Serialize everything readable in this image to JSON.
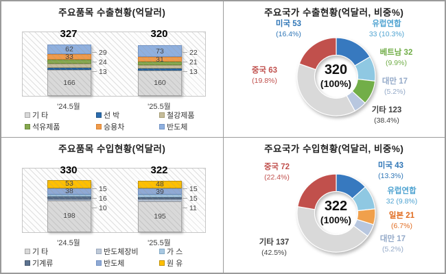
{
  "chart_data": [
    {
      "id": "export_items",
      "type": "bar",
      "stacked": true,
      "title": "주요품목 수출현황(억달러)",
      "categories": [
        "'24.5월",
        "'25.5월"
      ],
      "totals": [
        "327",
        "320"
      ],
      "series": [
        {
          "name": "기 타",
          "fill": "#D9D9D9",
          "border": "#A8A8A8",
          "values": [
            166,
            160
          ],
          "label": "inside"
        },
        {
          "name": "선 박",
          "fill": "#2B6CB0",
          "border": "#1F5384",
          "values": [
            13,
            13
          ],
          "label": "outside"
        },
        {
          "name": "철강제품",
          "fill": "#C6BD9B",
          "border": "#A49B72",
          "values": [
            24,
            21
          ],
          "label": "outside"
        },
        {
          "name": "석유제품",
          "fill": "#86A84E",
          "border": "#6B8A3A",
          "values": [
            29,
            22
          ],
          "label": "outside"
        },
        {
          "name": "승용차",
          "fill": "#F09B4C",
          "border": "#D9822E",
          "values": [
            33,
            31
          ],
          "label": "inside"
        },
        {
          "name": "반도체",
          "fill": "#8FB0DF",
          "border": "#7293C4",
          "values": [
            62,
            73
          ],
          "label": "inside"
        }
      ],
      "legend_order": [
        0,
        1,
        2,
        3,
        4,
        5
      ]
    },
    {
      "id": "export_countries",
      "type": "donut",
      "title": "주요국가 수출현황(억달러, 비중%)",
      "center_value": "320",
      "center_pct": "(100%)",
      "slices": [
        {
          "label": "미국",
          "value": 53,
          "pct": "(16.4%)",
          "wrap": false,
          "fill": "#3779BF",
          "label_color": "#2E75B6"
        },
        {
          "label": "유럽연합",
          "value": 33,
          "pct": "(10.3%)",
          "wrap": true,
          "fill": "#8FC8E2",
          "label_color": "#4FA3D1"
        },
        {
          "label": "베트남",
          "value": 32,
          "pct": "(9.9%)",
          "wrap": false,
          "fill": "#72AE48",
          "label_color": "#70AD47"
        },
        {
          "label": "대만",
          "value": 17,
          "pct": "(5.2%)",
          "wrap": false,
          "fill": "#B8C7DF",
          "label_color": "#93A9C8"
        },
        {
          "label": "기타",
          "value": 123,
          "pct": "(38.4%)",
          "wrap": false,
          "fill": "#D9D9D9",
          "label_color": "#404040"
        },
        {
          "label": "중국",
          "value": 63,
          "pct": "(19.8%)",
          "wrap": false,
          "fill": "#C1504C",
          "label_color": "#C0504D"
        }
      ]
    },
    {
      "id": "import_items",
      "type": "bar",
      "stacked": true,
      "title": "주요품목 수입현황(억달러)",
      "categories": [
        "'24.5월",
        "'25.5월"
      ],
      "totals": [
        "330",
        "322"
      ],
      "series": [
        {
          "name": "기 타",
          "fill": "#D9D9D9",
          "border": "#A8A8A8",
          "values": [
            198,
            195
          ],
          "label": "inside"
        },
        {
          "name": "반도체장비",
          "fill": "#BFCAD8",
          "border": "#9AA8BD",
          "values": [
            10,
            11
          ],
          "label": "outside"
        },
        {
          "name": "기계류",
          "fill": "#5D7390",
          "border": "#46586E",
          "values": [
            16,
            15
          ],
          "label": "outside"
        },
        {
          "name": "가 스",
          "fill": "#A9C8E1",
          "border": "#82A9C6",
          "values": [
            15,
            15
          ],
          "label": "outside"
        },
        {
          "name": "반도체",
          "fill": "#8FA9D4",
          "border": "#7191C3",
          "values": [
            38,
            39
          ],
          "label": "inside"
        },
        {
          "name": "원 유",
          "fill": "#FFC000",
          "border": "#BF9000",
          "values": [
            53,
            48
          ],
          "label": "inside"
        }
      ],
      "legend_order": [
        0,
        1,
        3,
        2,
        4,
        5
      ]
    },
    {
      "id": "import_countries",
      "type": "donut",
      "title": "주요국가 수입현황(억달러, 비중%)",
      "center_value": "322",
      "center_pct": "(100%)",
      "slices": [
        {
          "label": "미국",
          "value": 43,
          "pct": "(13.3%)",
          "wrap": false,
          "fill": "#3779BF",
          "label_color": "#2E75B6"
        },
        {
          "label": "유럽연합",
          "value": 32,
          "pct": "(9.8%)",
          "wrap": true,
          "fill": "#8FC8E2",
          "label_color": "#4FA3D1"
        },
        {
          "label": "일본",
          "value": 21,
          "pct": "(6.7%)",
          "wrap": false,
          "fill": "#F0A04C",
          "label_color": "#E06B1F"
        },
        {
          "label": "대만",
          "value": 17,
          "pct": "(5.2%)",
          "wrap": false,
          "fill": "#B8C7DF",
          "label_color": "#93A9C8"
        },
        {
          "label": "기타",
          "value": 137,
          "pct": "(42.5%)",
          "wrap": false,
          "fill": "#D9D9D9",
          "label_color": "#404040"
        },
        {
          "label": "중국",
          "value": 72,
          "pct": "(22.4%)",
          "wrap": false,
          "fill": "#C1504C",
          "label_color": "#C0504D"
        }
      ]
    }
  ]
}
